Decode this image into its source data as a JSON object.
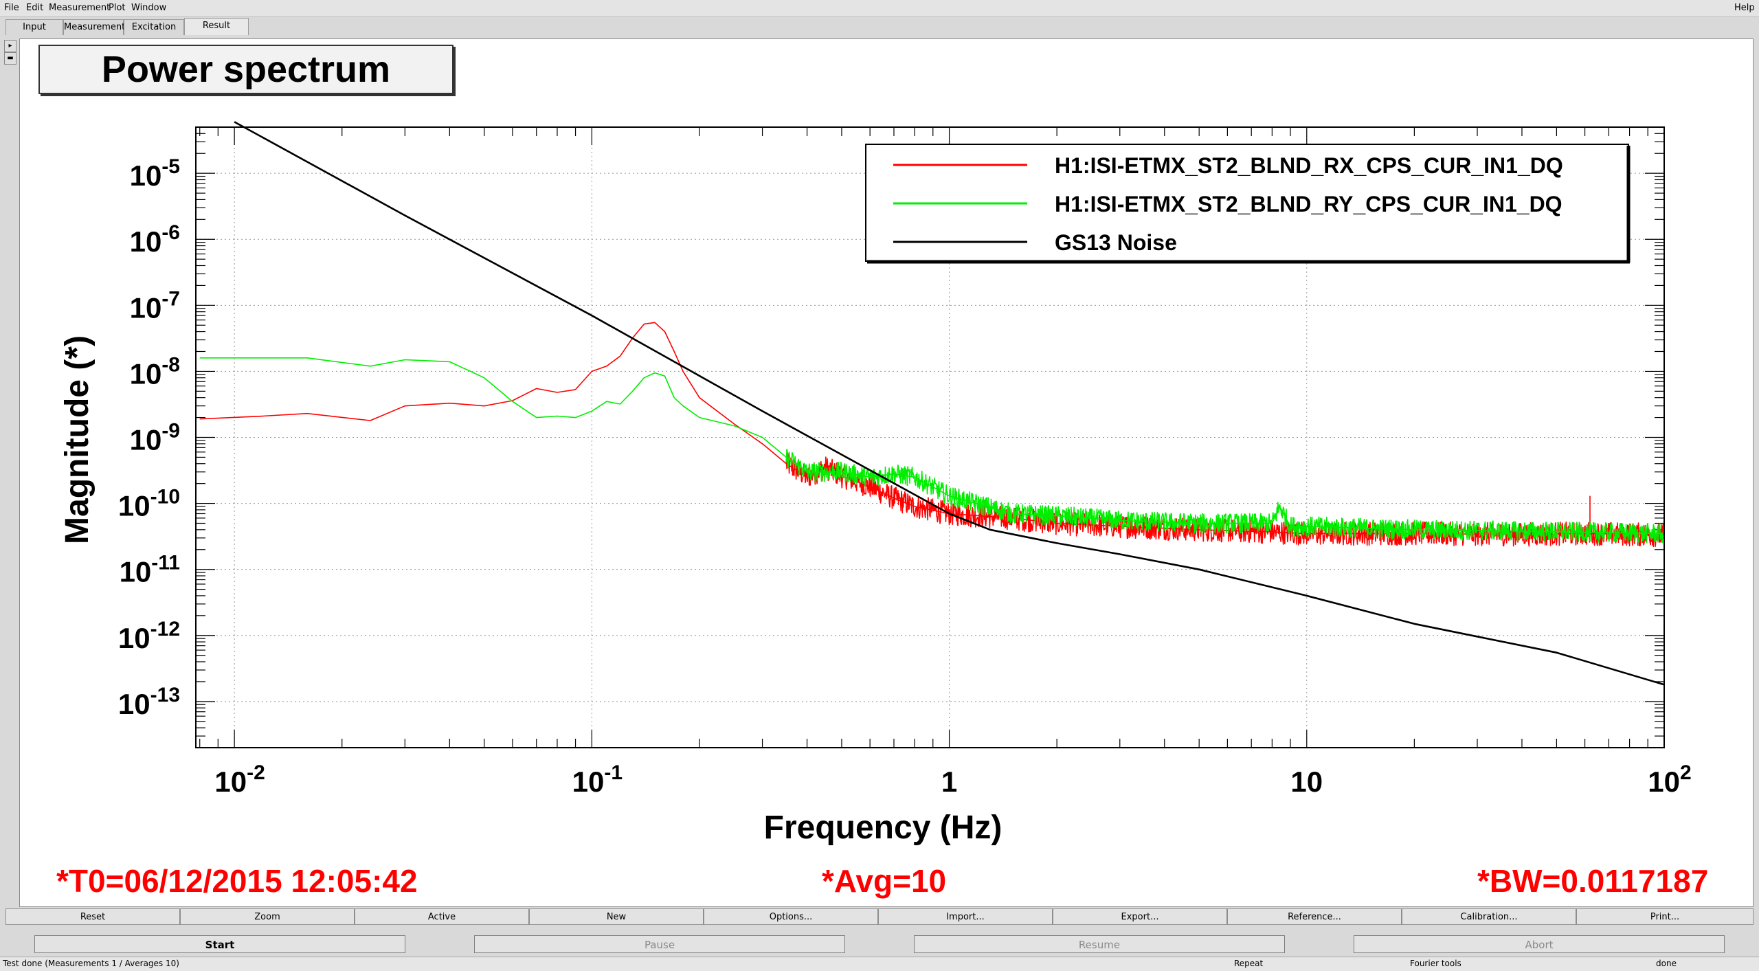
{
  "menu": [
    "File",
    "Edit",
    "Measurement",
    "Plot",
    "Window"
  ],
  "help": "Help",
  "tabs": [
    "Input",
    "Measurement",
    "Excitation",
    "Result"
  ],
  "panel_title": "Power spectrum",
  "chart_data": {
    "type": "line",
    "x_scale": "log",
    "y_scale": "log",
    "xlim": [
      0.0078,
      100
    ],
    "ylim": [
      2e-14,
      5e-05
    ],
    "xlabel": "Frequency (Hz)",
    "ylabel": "Magnitude (*)",
    "x_ticks": [
      {
        "value": 0.01,
        "base": "10",
        "exp": "-2"
      },
      {
        "value": 0.1,
        "base": "10",
        "exp": "-1"
      },
      {
        "value": 1,
        "base": "1",
        "exp": ""
      },
      {
        "value": 10,
        "base": "10",
        "exp": ""
      },
      {
        "value": 100,
        "base": "10",
        "exp": "2"
      }
    ],
    "y_ticks": [
      {
        "value": 1e-05,
        "base": "10",
        "exp": "-5"
      },
      {
        "value": 1e-06,
        "base": "10",
        "exp": "-6"
      },
      {
        "value": 1e-07,
        "base": "10",
        "exp": "-7"
      },
      {
        "value": 1e-08,
        "base": "10",
        "exp": "-8"
      },
      {
        "value": 1e-09,
        "base": "10",
        "exp": "-9"
      },
      {
        "value": 1e-10,
        "base": "10",
        "exp": "-10"
      },
      {
        "value": 1e-11,
        "base": "10",
        "exp": "-11"
      },
      {
        "value": 1e-12,
        "base": "10",
        "exp": "-12"
      },
      {
        "value": 1e-13,
        "base": "10",
        "exp": "-13"
      }
    ],
    "grid": true,
    "legend_position": "top-right",
    "series": [
      {
        "name": "H1:ISI-ETMX_ST2_BLND_RX_CPS_CUR_IN1_DQ",
        "color": "#ff0000",
        "x": [
          0.008,
          0.012,
          0.016,
          0.024,
          0.03,
          0.04,
          0.05,
          0.06,
          0.07,
          0.08,
          0.09,
          0.1,
          0.11,
          0.12,
          0.13,
          0.14,
          0.15,
          0.16,
          0.17,
          0.18,
          0.2,
          0.25,
          0.3,
          0.35,
          0.4,
          0.45,
          0.5,
          0.6,
          0.7,
          0.8,
          1,
          1.5,
          2,
          3,
          5,
          8,
          10,
          20,
          40,
          60,
          62,
          64,
          80,
          100
        ],
        "y": [
          1.9e-09,
          2.1e-09,
          2.3e-09,
          1.8e-09,
          3e-09,
          3.3e-09,
          3e-09,
          3.6e-09,
          5.5e-09,
          4.8e-09,
          5.3e-09,
          1e-08,
          1.2e-08,
          1.7e-08,
          3.2e-08,
          5.2e-08,
          5.5e-08,
          4e-08,
          2e-08,
          1e-08,
          4e-09,
          1.6e-09,
          8e-10,
          4e-10,
          2.5e-10,
          3.5e-10,
          2.6e-10,
          1.8e-10,
          1.2e-10,
          9e-11,
          7e-11,
          6e-11,
          5e-11,
          4.5e-11,
          4e-11,
          3.7e-11,
          3.5e-11,
          3.5e-11,
          3.4e-11,
          3.5e-11,
          1.3e-10,
          3.5e-11,
          3.4e-11,
          3.3e-11
        ],
        "noise": 0.18
      },
      {
        "name": "H1:ISI-ETMX_ST2_BLND_RY_CPS_CUR_IN1_DQ",
        "color": "#00ee00",
        "x": [
          0.008,
          0.012,
          0.016,
          0.024,
          0.03,
          0.04,
          0.05,
          0.06,
          0.07,
          0.08,
          0.09,
          0.1,
          0.11,
          0.12,
          0.13,
          0.14,
          0.15,
          0.16,
          0.17,
          0.18,
          0.2,
          0.25,
          0.3,
          0.35,
          0.4,
          0.5,
          0.6,
          0.7,
          0.8,
          1,
          1.5,
          2,
          3,
          5,
          8,
          8.4,
          9,
          10,
          20,
          40,
          100
        ],
        "y": [
          1.6e-08,
          1.6e-08,
          1.6e-08,
          1.2e-08,
          1.5e-08,
          1.4e-08,
          8e-09,
          3.5e-09,
          2e-09,
          2.1e-09,
          2e-09,
          2.5e-09,
          3.5e-09,
          3.2e-09,
          5e-09,
          8e-09,
          9.5e-09,
          8.5e-09,
          4e-09,
          3e-09,
          2e-09,
          1.5e-09,
          1e-09,
          5e-10,
          3e-10,
          3e-10,
          2.5e-10,
          2.8e-10,
          2.5e-10,
          1.3e-10,
          7e-11,
          6.5e-11,
          5.5e-11,
          5e-11,
          5e-11,
          9e-11,
          4.5e-11,
          4.5e-11,
          4e-11,
          3.8e-11,
          3.5e-11
        ],
        "noise": 0.15
      },
      {
        "name": "GS13 Noise",
        "color": "#000000",
        "x": [
          0.01,
          0.03,
          0.1,
          0.3,
          1,
          1.3,
          2,
          3,
          5,
          10,
          20,
          50,
          100
        ],
        "y": [
          6e-05,
          2.3e-06,
          7e-08,
          2.5e-09,
          7e-11,
          4e-11,
          2.5e-11,
          1.7e-11,
          1e-11,
          4e-12,
          1.5e-12,
          5.5e-13,
          1.8e-13
        ],
        "noise": 0
      }
    ]
  },
  "footer": {
    "t0": "*T0=06/12/2015 12:05:42",
    "avg": "*Avg=10",
    "bw": "*BW=0.0117187"
  },
  "toolbar": [
    "Reset",
    "Zoom",
    "Active",
    "New",
    "Options...",
    "Import...",
    "Export...",
    "Reference...",
    "Calibration...",
    "Print..."
  ],
  "controls": [
    "Start",
    "Pause",
    "Resume",
    "Abort"
  ],
  "status": {
    "message": "Test done (Measurements 1 / Averages 10)",
    "mode": "Repeat",
    "tool": "Fourier tools",
    "state": "done"
  }
}
